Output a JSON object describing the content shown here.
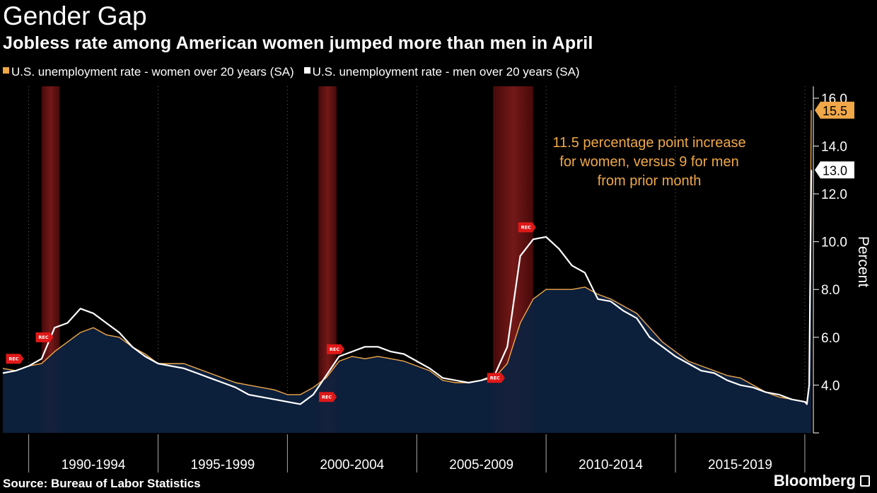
{
  "header": {
    "title": "Gender Gap",
    "subtitle": "Jobless rate among American women jumped more than men in April"
  },
  "legend": {
    "items": [
      {
        "label": "U.S. unemployment rate - women over 20 years (SA)",
        "color": "#f0a848"
      },
      {
        "label": "U.S. unemployment rate - men over 20 years (SA)",
        "color": "#ffffff"
      }
    ]
  },
  "footer": {
    "source": "Source: Bureau of Labor Statistics",
    "brand": "Bloomberg"
  },
  "chart_data": {
    "type": "line",
    "title": "Gender Gap",
    "subtitle": "Jobless rate among American women jumped more than men in April",
    "xlabel": "",
    "ylabel": "Percent",
    "xlim": [
      1989.0,
      2020.33
    ],
    "ylim": [
      2.0,
      16.5
    ],
    "y_ticks": [
      "4.0",
      "6.0",
      "8.0",
      "10.0",
      "12.0",
      "14.0",
      "16.0"
    ],
    "x_period_labels": [
      "1990-1994",
      "1995-1999",
      "2000-2004",
      "2005-2009",
      "2010-2014",
      "2015-2019"
    ],
    "recessions": [
      [
        1990.5,
        1991.2
      ],
      [
        2001.2,
        2001.9
      ],
      [
        2007.95,
        2009.5
      ]
    ],
    "recession_label": "REC",
    "series": [
      {
        "name": "U.S. unemployment rate - women over 20 years (SA)",
        "color": "#f0a848",
        "x": [
          1989.0,
          1989.5,
          1990.0,
          1990.5,
          1991.0,
          1991.5,
          1992.0,
          1992.5,
          1993.0,
          1993.5,
          1994.0,
          1994.5,
          1995.0,
          1995.5,
          1996.0,
          1996.5,
          1997.0,
          1997.5,
          1998.0,
          1998.5,
          1999.0,
          1999.5,
          2000.0,
          2000.5,
          2001.0,
          2001.5,
          2002.0,
          2002.5,
          2003.0,
          2003.5,
          2004.0,
          2004.5,
          2005.0,
          2005.5,
          2006.0,
          2006.5,
          2007.0,
          2007.5,
          2008.0,
          2008.5,
          2009.0,
          2009.5,
          2010.0,
          2010.5,
          2011.0,
          2011.5,
          2012.0,
          2012.5,
          2013.0,
          2013.5,
          2014.0,
          2014.5,
          2015.0,
          2015.5,
          2016.0,
          2016.5,
          2017.0,
          2017.5,
          2018.0,
          2018.5,
          2019.0,
          2019.5,
          2020.0,
          2020.08,
          2020.17,
          2020.25
        ],
        "values": [
          4.7,
          4.6,
          4.8,
          4.9,
          5.4,
          5.8,
          6.2,
          6.4,
          6.1,
          6.0,
          5.6,
          5.3,
          4.9,
          4.9,
          4.9,
          4.7,
          4.5,
          4.3,
          4.1,
          4.0,
          3.9,
          3.8,
          3.6,
          3.6,
          3.9,
          4.3,
          5.0,
          5.2,
          5.1,
          5.2,
          5.1,
          5.0,
          4.8,
          4.6,
          4.2,
          4.1,
          4.1,
          4.2,
          4.3,
          4.9,
          6.6,
          7.6,
          8.0,
          8.0,
          8.0,
          8.1,
          7.8,
          7.6,
          7.3,
          7.0,
          6.4,
          5.8,
          5.4,
          5.0,
          4.8,
          4.6,
          4.4,
          4.3,
          4.0,
          3.7,
          3.5,
          3.4,
          3.3,
          3.3,
          4.0,
          15.5
        ]
      },
      {
        "name": "U.S. unemployment rate - men over 20 years (SA)",
        "color": "#ffffff",
        "x": [
          1989.0,
          1989.5,
          1990.0,
          1990.5,
          1991.0,
          1991.5,
          1992.0,
          1992.5,
          1993.0,
          1993.5,
          1994.0,
          1994.5,
          1995.0,
          1995.5,
          1996.0,
          1996.5,
          1997.0,
          1997.5,
          1998.0,
          1998.5,
          1999.0,
          1999.5,
          2000.0,
          2000.5,
          2001.0,
          2001.5,
          2002.0,
          2002.5,
          2003.0,
          2003.5,
          2004.0,
          2004.5,
          2005.0,
          2005.5,
          2006.0,
          2006.5,
          2007.0,
          2007.5,
          2008.0,
          2008.5,
          2009.0,
          2009.5,
          2010.0,
          2010.5,
          2011.0,
          2011.5,
          2012.0,
          2012.5,
          2013.0,
          2013.5,
          2014.0,
          2014.5,
          2015.0,
          2015.5,
          2016.0,
          2016.5,
          2017.0,
          2017.5,
          2018.0,
          2018.5,
          2019.0,
          2019.5,
          2020.0,
          2020.08,
          2020.17,
          2020.25
        ],
        "values": [
          4.5,
          4.6,
          4.8,
          5.1,
          6.4,
          6.6,
          7.2,
          7.0,
          6.6,
          6.2,
          5.6,
          5.2,
          4.9,
          4.8,
          4.7,
          4.5,
          4.3,
          4.1,
          3.9,
          3.6,
          3.5,
          3.4,
          3.3,
          3.2,
          3.6,
          4.4,
          5.2,
          5.4,
          5.6,
          5.6,
          5.4,
          5.3,
          5.0,
          4.7,
          4.3,
          4.2,
          4.1,
          4.2,
          4.4,
          5.6,
          9.4,
          10.1,
          10.2,
          9.7,
          9.0,
          8.7,
          7.6,
          7.5,
          7.1,
          6.8,
          6.0,
          5.6,
          5.2,
          4.9,
          4.6,
          4.5,
          4.2,
          4.0,
          3.9,
          3.7,
          3.6,
          3.4,
          3.3,
          3.2,
          4.0,
          13.0
        ]
      }
    ],
    "end_labels": [
      "15.5",
      "13.0"
    ],
    "annotation": [
      "11.5 percentage point increase",
      "for women, versus 9 for men",
      "from prior month"
    ],
    "legend_position": "top-left",
    "grid": "vertical dotted"
  }
}
